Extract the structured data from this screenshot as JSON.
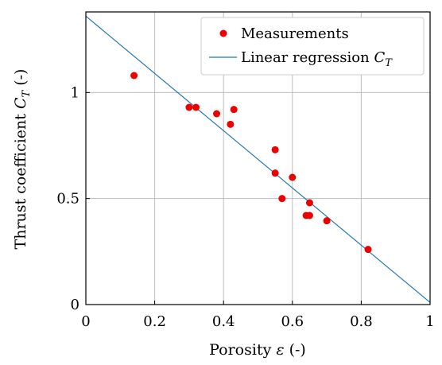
{
  "chart_data": {
    "type": "scatter",
    "xlabel": "Porosity ε (-)",
    "ylabel": "Thrust coefficient C_T (-)",
    "xlim": [
      0,
      1
    ],
    "ylim": [
      0,
      1.38
    ],
    "xticks": [
      0,
      0.2,
      0.4,
      0.6,
      0.8,
      1
    ],
    "xtick_labels": [
      "0",
      "0.2",
      "0.4",
      "0.6",
      "0.8",
      "1"
    ],
    "yticks": [
      0,
      0.5,
      1
    ],
    "ytick_labels": [
      "0",
      "0.5",
      "1"
    ],
    "grid": true,
    "legend_position": "top-right",
    "series": [
      {
        "name": "Measurements",
        "kind": "scatter",
        "color": "#ee0000",
        "x": [
          0.14,
          0.3,
          0.32,
          0.38,
          0.42,
          0.43,
          0.55,
          0.55,
          0.57,
          0.6,
          0.64,
          0.65,
          0.65,
          0.7,
          0.82
        ],
        "y": [
          1.08,
          0.93,
          0.93,
          0.9,
          0.85,
          0.92,
          0.73,
          0.62,
          0.5,
          0.6,
          0.42,
          0.48,
          0.42,
          0.395,
          0.26
        ]
      },
      {
        "name": "Linear regression C_T",
        "kind": "line",
        "color": "#1f77b4",
        "x": [
          0,
          1
        ],
        "y": [
          1.36,
          0.01
        ]
      }
    ]
  }
}
